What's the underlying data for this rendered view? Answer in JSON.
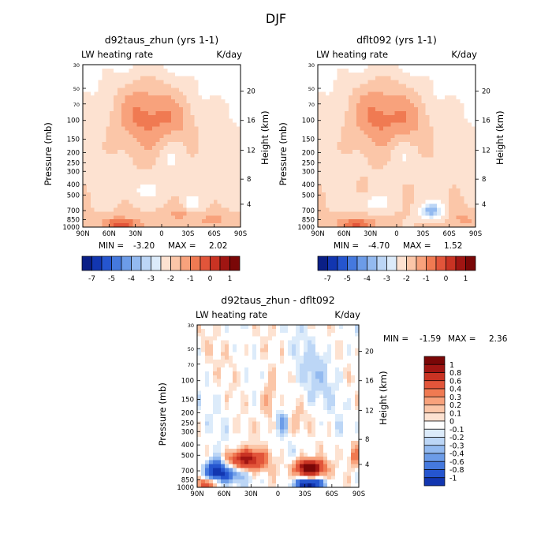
{
  "figure_title": "DJF",
  "colors": {
    "pos": [
      "#fde2d1",
      "#fbc6a8",
      "#f8a27c",
      "#f07a52",
      "#e2553a",
      "#c93323",
      "#a01512",
      "#7a0707"
    ],
    "neg": [
      "#dcebfa",
      "#bcd6f6",
      "#93baf0",
      "#6c9ce8",
      "#4579de",
      "#2555cf",
      "#1236b0",
      "#0a1f86"
    ],
    "white": "#ffffff"
  },
  "chart_data": [
    {
      "type": "heatmap",
      "id": "p1",
      "title": "d92taus_zhun (yrs 1-1)",
      "left_label": "LW heating rate",
      "right_label": "K/day",
      "xlabel": "",
      "ylabel": "Pressure (mb)",
      "y2label": "Height (km)",
      "x_ticks": [
        "90N",
        "60N",
        "30N",
        "0",
        "30S",
        "60S",
        "90S"
      ],
      "y_ticks": [
        "30",
        "50",
        "70",
        "100",
        "150",
        "200",
        "250",
        "300",
        "400",
        "500",
        "700",
        "850",
        "1000"
      ],
      "y2_ticks": [
        "20",
        "16",
        "12",
        "8",
        "4"
      ],
      "xlim": [
        90,
        -90
      ],
      "ylim": [
        1000,
        30
      ],
      "stats": {
        "min_label": "MIN =",
        "min": "-3.20",
        "max_label": "MAX =",
        "max": "2.02"
      },
      "colorbar_levels": [
        "-7",
        "-5",
        "-4",
        "-3",
        "-2",
        "-1",
        "0",
        "1"
      ]
    },
    {
      "type": "heatmap",
      "id": "p2",
      "title": "dflt092 (yrs 1-1)",
      "left_label": "LW heating rate",
      "right_label": "K/day",
      "xlabel": "",
      "ylabel": "Pressure (mb)",
      "y2label": "Height (km)",
      "x_ticks": [
        "90N",
        "60N",
        "30N",
        "0",
        "30S",
        "60S",
        "90S"
      ],
      "y_ticks": [
        "30",
        "50",
        "70",
        "100",
        "150",
        "200",
        "250",
        "300",
        "400",
        "500",
        "700",
        "850",
        "1000"
      ],
      "y2_ticks": [
        "20",
        "16",
        "12",
        "8",
        "4"
      ],
      "xlim": [
        90,
        -90
      ],
      "ylim": [
        1000,
        30
      ],
      "stats": {
        "min_label": "MIN =",
        "min": "-4.70",
        "max_label": "MAX =",
        "max": "1.52"
      },
      "colorbar_levels": [
        "-7",
        "-5",
        "-4",
        "-3",
        "-2",
        "-1",
        "0",
        "1"
      ]
    },
    {
      "type": "heatmap",
      "id": "p3",
      "title": "d92taus_zhun - dflt092",
      "left_label": "LW heating rate",
      "right_label": "K/day",
      "xlabel": "",
      "ylabel": "Pressure (mb)",
      "y2label": "Height (km)",
      "x_ticks": [
        "90N",
        "60N",
        "30N",
        "0",
        "30S",
        "60S",
        "90S"
      ],
      "y_ticks": [
        "30",
        "50",
        "70",
        "100",
        "150",
        "200",
        "250",
        "300",
        "400",
        "500",
        "700",
        "850",
        "1000"
      ],
      "y2_ticks": [
        "20",
        "16",
        "12",
        "8",
        "4"
      ],
      "xlim": [
        90,
        -90
      ],
      "ylim": [
        1000,
        30
      ],
      "stats": {
        "min_label": "MIN =",
        "min": "-1.59",
        "max_label": "MAX =",
        "max": "2.36"
      },
      "colorbar_levels": [
        "1",
        "0.8",
        "0.6",
        "0.4",
        "0.3",
        "0.2",
        "0.1",
        "0",
        "-0.1",
        "-0.2",
        "-0.3",
        "-0.4",
        "-0.6",
        "-0.8",
        "-1"
      ]
    }
  ]
}
